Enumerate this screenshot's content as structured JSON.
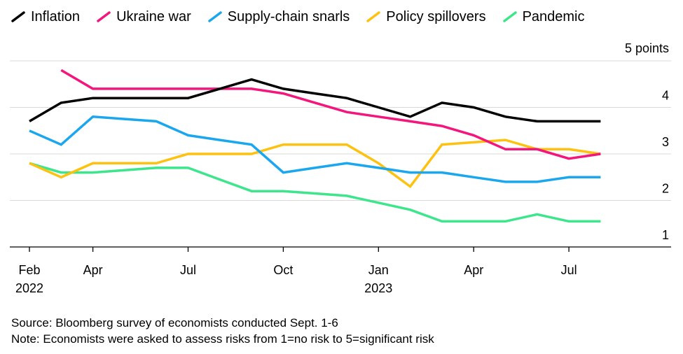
{
  "chart_data": {
    "type": "line",
    "y_unit_label": "5 points",
    "ylim": [
      1,
      5
    ],
    "yticks": [
      1,
      2,
      3,
      4
    ],
    "x": [
      "2022-02",
      "2022-03",
      "2022-04",
      "2022-05",
      "2022-06",
      "2022-07",
      "2022-08",
      "2022-09",
      "2022-10",
      "2022-11",
      "2022-12",
      "2023-01",
      "2023-02",
      "2023-03",
      "2023-04",
      "2023-05",
      "2023-06",
      "2023-07",
      "2023-08"
    ],
    "xticks": [
      {
        "date": "2022-02",
        "label": "Feb",
        "sublabel": "2022"
      },
      {
        "date": "2022-04",
        "label": "Apr",
        "sublabel": ""
      },
      {
        "date": "2022-07",
        "label": "Jul",
        "sublabel": ""
      },
      {
        "date": "2022-10",
        "label": "Oct",
        "sublabel": ""
      },
      {
        "date": "2023-01",
        "label": "Jan",
        "sublabel": "2023"
      },
      {
        "date": "2023-04",
        "label": "Apr",
        "sublabel": ""
      },
      {
        "date": "2023-07",
        "label": "Jul",
        "sublabel": ""
      }
    ],
    "grid": "horizontal",
    "legend_position": "top",
    "series": [
      {
        "name": "Inflation",
        "color": "#000000",
        "values": [
          3.7,
          4.1,
          4.2,
          4.2,
          4.2,
          4.2,
          4.4,
          4.6,
          4.4,
          4.3,
          4.2,
          4.0,
          3.8,
          4.1,
          4.0,
          3.8,
          3.7,
          3.7,
          3.7
        ]
      },
      {
        "name": "Ukraine war",
        "color": "#f2167d",
        "values": [
          null,
          4.8,
          4.4,
          4.4,
          4.4,
          4.4,
          4.4,
          4.4,
          4.3,
          4.1,
          3.9,
          3.8,
          3.7,
          3.6,
          3.4,
          3.1,
          3.1,
          2.9,
          3.0
        ]
      },
      {
        "name": "Supply-chain snarls",
        "color": "#1aa7ee",
        "values": [
          3.5,
          3.2,
          3.8,
          3.75,
          3.7,
          3.4,
          3.3,
          3.2,
          2.6,
          2.7,
          2.8,
          2.7,
          2.6,
          2.6,
          2.5,
          2.4,
          2.4,
          2.5,
          2.5
        ]
      },
      {
        "name": "Policy spillovers",
        "color": "#fdc10f",
        "values": [
          2.8,
          2.5,
          2.8,
          2.8,
          2.8,
          3.0,
          3.0,
          3.0,
          3.2,
          3.2,
          3.2,
          2.8,
          2.3,
          3.2,
          3.25,
          3.3,
          3.1,
          3.1,
          3.0
        ]
      },
      {
        "name": "Pandemic",
        "color": "#3de58c",
        "values": [
          2.8,
          2.6,
          2.6,
          2.65,
          2.7,
          2.7,
          2.45,
          2.2,
          2.2,
          2.15,
          2.1,
          1.95,
          1.8,
          1.55,
          1.55,
          1.55,
          1.7,
          1.55,
          1.55
        ]
      }
    ]
  },
  "source": "Source: Bloomberg survey of economists conducted Sept. 1-6",
  "note": "Note: Economists were asked to assess risks from 1=no risk to 5=significant risk"
}
